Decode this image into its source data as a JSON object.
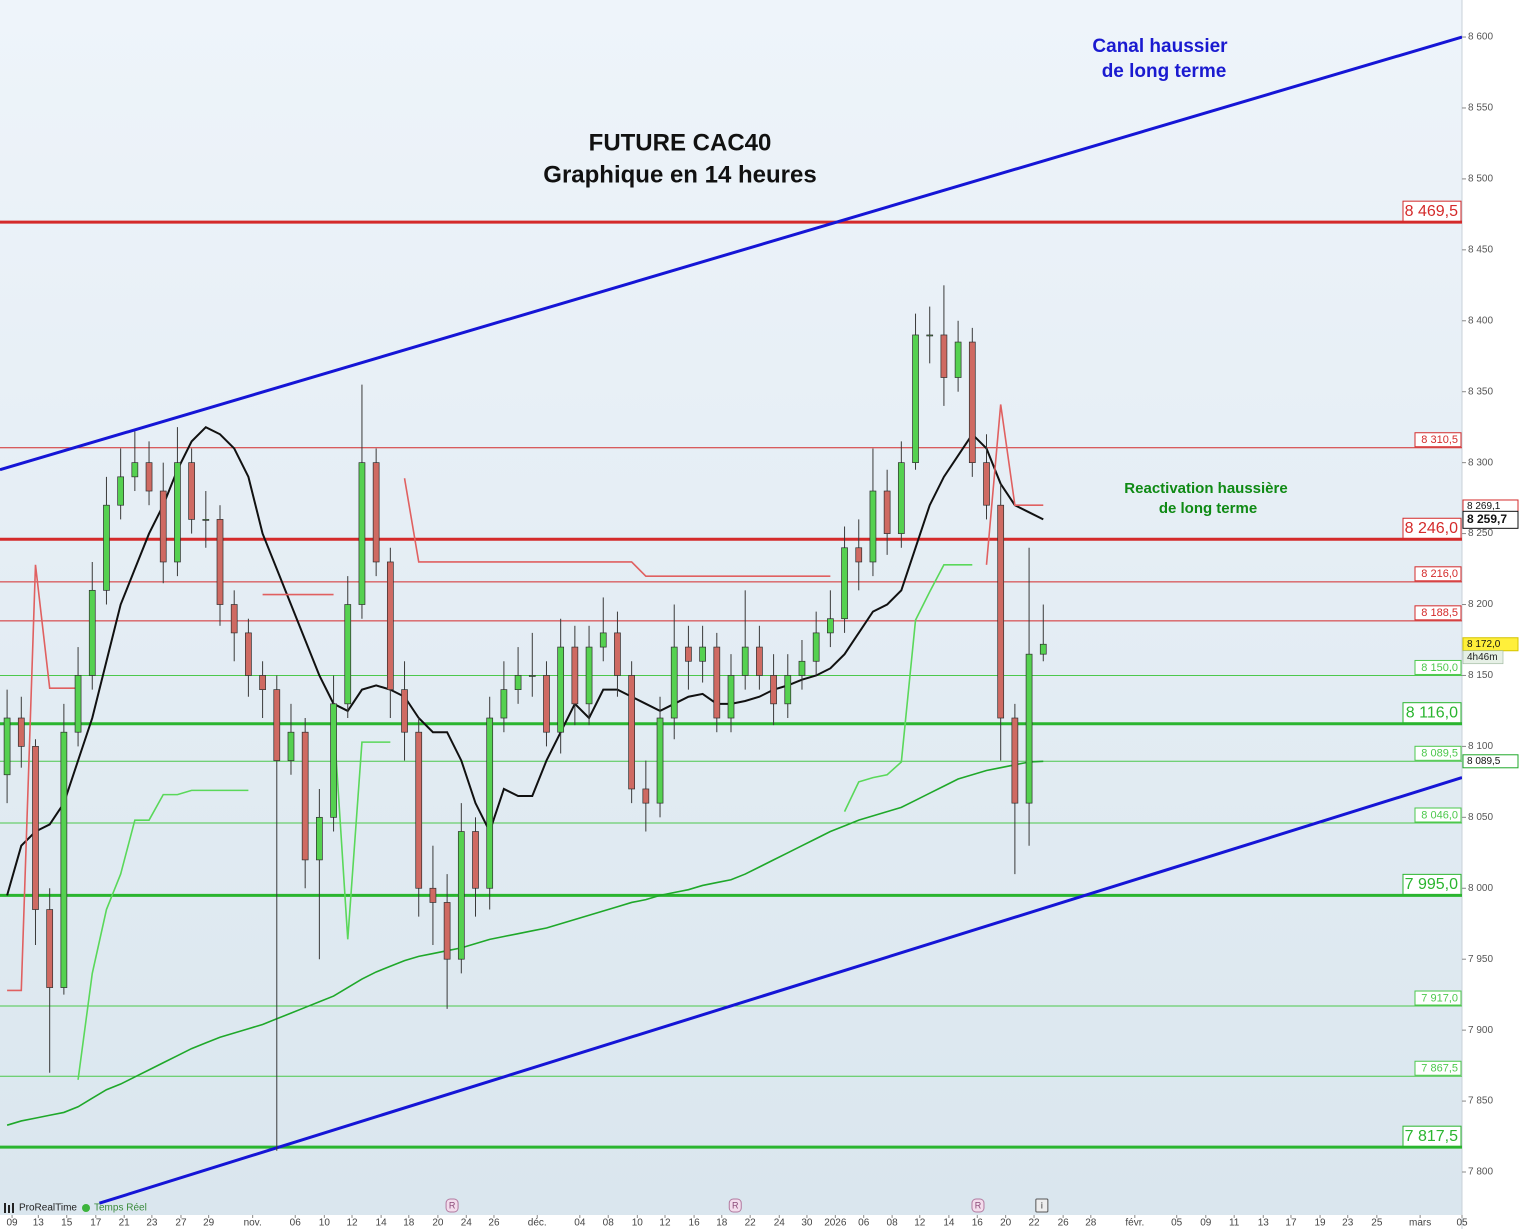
{
  "chart_data": {
    "type": "candlestick",
    "title": [
      "FUTURE CAC40",
      "Graphique en 14 heures"
    ],
    "annotations": [
      {
        "lines": [
          "Canal haussier",
          "de long terme"
        ],
        "color": "#1a1ad0"
      },
      {
        "lines": [
          "Reactivation haussière",
          "de long terme"
        ],
        "color": "#0f8a14"
      }
    ],
    "footer": [
      "ProRealTime",
      "Temps Réel"
    ],
    "xlim": [
      0,
      206
    ],
    "ylim": [
      7769.7,
      8626.1
    ],
    "xticks": [
      {
        "value": 1.7,
        "label": "09"
      },
      {
        "value": 5.4,
        "label": "13"
      },
      {
        "value": 9.4,
        "label": "15"
      },
      {
        "value": 13.5,
        "label": "17"
      },
      {
        "value": 17.5,
        "label": "21"
      },
      {
        "value": 21.4,
        "label": "23"
      },
      {
        "value": 25.5,
        "label": "27"
      },
      {
        "value": 29.4,
        "label": "29"
      },
      {
        "value": 35.6,
        "label": "nov."
      },
      {
        "value": 41.6,
        "label": "06"
      },
      {
        "value": 45.7,
        "label": "10"
      },
      {
        "value": 49.6,
        "label": "12"
      },
      {
        "value": 53.7,
        "label": "14"
      },
      {
        "value": 57.6,
        "label": "18"
      },
      {
        "value": 61.7,
        "label": "20"
      },
      {
        "value": 65.7,
        "label": "24"
      },
      {
        "value": 69.6,
        "label": "26"
      },
      {
        "value": 75.7,
        "label": "déc."
      },
      {
        "value": 81.7,
        "label": "04"
      },
      {
        "value": 85.7,
        "label": "08"
      },
      {
        "value": 89.8,
        "label": "10"
      },
      {
        "value": 93.7,
        "label": "12"
      },
      {
        "value": 97.8,
        "label": "16"
      },
      {
        "value": 101.7,
        "label": "18"
      },
      {
        "value": 105.7,
        "label": "22"
      },
      {
        "value": 109.8,
        "label": "24"
      },
      {
        "value": 113.7,
        "label": "30"
      },
      {
        "value": 117.7,
        "label": "2026"
      },
      {
        "value": 121.7,
        "label": "06"
      },
      {
        "value": 125.7,
        "label": "08"
      },
      {
        "value": 129.6,
        "label": "12"
      },
      {
        "value": 133.7,
        "label": "14"
      },
      {
        "value": 137.7,
        "label": "16"
      },
      {
        "value": 141.7,
        "label": "20"
      },
      {
        "value": 145.7,
        "label": "22"
      },
      {
        "value": 149.8,
        "label": "26"
      },
      {
        "value": 153.7,
        "label": "28"
      },
      {
        "value": 159.9,
        "label": "févr."
      },
      {
        "value": 165.8,
        "label": "05"
      },
      {
        "value": 169.9,
        "label": "09"
      },
      {
        "value": 173.9,
        "label": "11"
      },
      {
        "value": 178.0,
        "label": "13"
      },
      {
        "value": 181.9,
        "label": "17"
      },
      {
        "value": 186.0,
        "label": "19"
      },
      {
        "value": 189.9,
        "label": "23"
      },
      {
        "value": 194.0,
        "label": "25"
      },
      {
        "value": 200.1,
        "label": "mars"
      },
      {
        "value": 206.0,
        "label": "05"
      }
    ],
    "yticks": [
      {
        "value": 7800,
        "label": "7 800"
      },
      {
        "value": 7850,
        "label": "7 850"
      },
      {
        "value": 7900,
        "label": "7 900"
      },
      {
        "value": 7950,
        "label": "7 950"
      },
      {
        "value": 8000,
        "label": "8 000"
      },
      {
        "value": 8050,
        "label": "8 050"
      },
      {
        "value": 8100,
        "label": "8 100"
      },
      {
        "value": 8150,
        "label": "8 150"
      },
      {
        "value": 8200,
        "label": "8 200"
      },
      {
        "value": 8250,
        "label": "8 250"
      },
      {
        "value": 8300,
        "label": "8 300"
      },
      {
        "value": 8350,
        "label": "8 350"
      },
      {
        "value": 8400,
        "label": "8 400"
      },
      {
        "value": 8450,
        "label": "8 450"
      },
      {
        "value": 8500,
        "label": "8 500"
      },
      {
        "value": 8550,
        "label": "8 550"
      },
      {
        "value": 8600,
        "label": "8 600"
      }
    ],
    "up_color": "#55d150",
    "down_color": "#cf6a62",
    "x": [
      1,
      3,
      5,
      7,
      9,
      11,
      13,
      15,
      17,
      19,
      21,
      23,
      25,
      27,
      29,
      31,
      33,
      35,
      37,
      39,
      41,
      43,
      45,
      47,
      49,
      51,
      53,
      55,
      57,
      59,
      61,
      63,
      65,
      67,
      69,
      71,
      73,
      75,
      77,
      79,
      81,
      83,
      85,
      87,
      89,
      91,
      93,
      95,
      97,
      99,
      101,
      103,
      105,
      107,
      109,
      111,
      113,
      115,
      117,
      119,
      121,
      123,
      125,
      127,
      129,
      131,
      133,
      135,
      137,
      139,
      141,
      143,
      145,
      147
    ],
    "open": [
      8080,
      8120,
      8100,
      7985,
      7930,
      8110,
      8150,
      8210,
      8270,
      8290,
      8300,
      8280,
      8230,
      8300,
      8260,
      8260,
      8200,
      8180,
      8150,
      8140,
      8090,
      8110,
      8020,
      8050,
      8130,
      8200,
      8300,
      8230,
      8140,
      8110,
      8000,
      7990,
      7950,
      8040,
      8000,
      8120,
      8140,
      8150,
      8150,
      8110,
      8170,
      8130,
      8170,
      8180,
      8150,
      8070,
      8060,
      8120,
      8170,
      8160,
      8170,
      8120,
      8150,
      8170,
      8150,
      8130,
      8150,
      8160,
      8180,
      8190,
      8240,
      8230,
      8280,
      8250,
      8300,
      8390,
      8390,
      8360,
      8385,
      8300,
      8270,
      8120,
      8060,
      8165
    ],
    "high": [
      8140,
      8135,
      8105,
      8000,
      8130,
      8170,
      8230,
      8290,
      8310,
      8322,
      8315,
      8300,
      8325,
      8310,
      8280,
      8270,
      8210,
      8190,
      8160,
      8150,
      8130,
      8120,
      8070,
      8150,
      8220,
      8355,
      8310,
      8240,
      8160,
      8120,
      8030,
      8010,
      8060,
      8050,
      8135,
      8160,
      8170,
      8180,
      8160,
      8190,
      8185,
      8185,
      8205,
      8195,
      8160,
      8090,
      8135,
      8200,
      8185,
      8185,
      8180,
      8165,
      8210,
      8185,
      8165,
      8165,
      8175,
      8195,
      8210,
      8255,
      8260,
      8310,
      8295,
      8315,
      8405,
      8410,
      8425,
      8400,
      8395,
      8320,
      8285,
      8130,
      8240,
      8200
    ],
    "low": [
      8060,
      8085,
      7960,
      7870,
      7925,
      8100,
      8140,
      8200,
      8260,
      8280,
      8270,
      8215,
      8220,
      8250,
      8240,
      8185,
      8160,
      8135,
      8120,
      7815,
      8080,
      8000,
      7950,
      8040,
      8120,
      8190,
      8220,
      8120,
      8090,
      7980,
      7960,
      7915,
      7940,
      7980,
      7985,
      8110,
      8130,
      8135,
      8100,
      8095,
      8115,
      8115,
      8160,
      8135,
      8060,
      8040,
      8050,
      8105,
      8140,
      8145,
      8110,
      8110,
      8140,
      8140,
      8115,
      8120,
      8140,
      8150,
      8170,
      8180,
      8210,
      8220,
      8235,
      8240,
      8295,
      8370,
      8340,
      8350,
      8290,
      8260,
      8090,
      8010,
      8030,
      8160
    ],
    "close": [
      8120,
      8100,
      7985,
      7930,
      8110,
      8150,
      8210,
      8270,
      8290,
      8300,
      8280,
      8230,
      8300,
      8260,
      8260,
      8200,
      8180,
      8150,
      8140,
      8090,
      8110,
      8020,
      8050,
      8130,
      8200,
      8300,
      8230,
      8140,
      8110,
      8000,
      7990,
      7950,
      8040,
      8000,
      8120,
      8140,
      8150,
      8150,
      8110,
      8170,
      8130,
      8170,
      8180,
      8150,
      8070,
      8060,
      8120,
      8170,
      8160,
      8170,
      8120,
      8150,
      8170,
      8150,
      8130,
      8150,
      8160,
      8180,
      8190,
      8240,
      8230,
      8280,
      8250,
      8300,
      8390,
      8390,
      8360,
      8385,
      8300,
      8270,
      8120,
      8060,
      8165,
      8172
    ],
    "series": [
      {
        "color": "#111111",
        "values": [
          7995,
          8030,
          8040,
          8045,
          8060,
          8090,
          8120,
          8160,
          8200,
          8225,
          8250,
          8270,
          8295,
          8315,
          8325,
          8320,
          8310,
          8290,
          8250,
          8225,
          8200,
          8175,
          8150,
          8130,
          8125,
          8140,
          8143,
          8140,
          8135,
          8120,
          8110,
          8110,
          8090,
          8060,
          8040,
          8070,
          8065,
          8065,
          8090,
          8110,
          8130,
          8120,
          8140,
          8140,
          8135,
          8130,
          8125,
          8130,
          8135,
          8137,
          8130,
          8130,
          8132,
          8135,
          8140,
          8143,
          8147,
          8150,
          8155,
          8165,
          8180,
          8195,
          8200,
          8210,
          8240,
          8270,
          8290,
          8305,
          8320,
          8310,
          8285,
          8270,
          8265,
          8260
        ]
      },
      {
        "color": "#e06060",
        "values": [
          7928,
          7928,
          8228,
          8141,
          8141,
          8141,
          null,
          null,
          null,
          null,
          null,
          null,
          null,
          null,
          null,
          null,
          null,
          null,
          8207,
          8207,
          8207,
          8207,
          8207,
          8207,
          null,
          null,
          null,
          null,
          8289,
          8230,
          8230,
          8230,
          8230,
          8230,
          8230,
          8230,
          8230,
          8230,
          8230,
          8230,
          8230,
          8230,
          8230,
          8230,
          8230,
          8220,
          8220,
          8220,
          8220,
          8220,
          8220,
          8220,
          8220,
          8220,
          8220,
          8220,
          8220,
          8220,
          8220,
          null,
          null,
          null,
          null,
          null,
          null,
          null,
          null,
          null,
          null,
          8228,
          8341,
          8270,
          8270,
          8270
        ]
      },
      {
        "color": "#5ad85a",
        "values": [
          null,
          null,
          null,
          null,
          null,
          7865,
          7940,
          7985,
          8010,
          8048,
          8048,
          8066,
          8066,
          8069,
          8069,
          8069,
          8069,
          8069,
          null,
          null,
          null,
          null,
          null,
          8120,
          7964,
          8103,
          8103,
          8103,
          null,
          null,
          null,
          null,
          null,
          null,
          null,
          null,
          null,
          null,
          null,
          null,
          null,
          null,
          null,
          null,
          null,
          null,
          null,
          null,
          null,
          null,
          null,
          null,
          null,
          null,
          null,
          null,
          null,
          null,
          null,
          8054,
          8075,
          8078,
          8080,
          8089,
          8189,
          8209,
          8228,
          8228,
          8228,
          null,
          null,
          null,
          null,
          null
        ]
      },
      {
        "color": "#1fa82a",
        "values": [
          7833,
          7836,
          7838,
          7840,
          7842,
          7846,
          7852,
          7858,
          7862,
          7867,
          7872,
          7877,
          7882,
          7887,
          7891,
          7895,
          7898,
          7901,
          7904,
          7908,
          7912,
          7916,
          7920,
          7924,
          7930,
          7936,
          7941,
          7945,
          7949,
          7952,
          7954,
          7956,
          7958,
          7961,
          7964,
          7966,
          7968,
          7970,
          7972,
          7975,
          7978,
          7981,
          7984,
          7987,
          7990,
          7992,
          7995,
          7997,
          7999,
          8002,
          8004,
          8006,
          8010,
          8015,
          8020,
          8025,
          8030,
          8035,
          8040,
          8044,
          8048,
          8051,
          8054,
          8057,
          8062,
          8067,
          8072,
          8077,
          8080,
          8083,
          8085,
          8087,
          8089,
          8089.5
        ]
      }
    ],
    "channels": [
      {
        "color": "#1515d6",
        "x": [
          0,
          206
        ],
        "values": [
          8295,
          8600
        ]
      },
      {
        "color": "#1515d6",
        "x": [
          14,
          206
        ],
        "values": [
          7778,
          8078
        ]
      }
    ],
    "levels": {
      "values": [
        8469.5,
        8310.5,
        8246.0,
        8216.0,
        8188.5,
        8150.0,
        8116.0,
        8089.5,
        8046.0,
        7995.0,
        7917.0,
        7867.5,
        7817.5
      ],
      "value_labels": [
        "8 469,5",
        "8 310,5",
        "8 246,0",
        "8 216,0",
        "8 188,5",
        "8 150,0",
        "8 116,0",
        "8 089,5",
        "8 046,0",
        "7 995,0",
        "7 917,0",
        "7 867,5",
        "7 817,5"
      ],
      "colors": [
        "#d42a2a",
        "#d42a2a",
        "#d42a2a",
        "#d42a2a",
        "#d42a2a",
        "#4cc84c",
        "#2ab52f",
        "#4cc84c",
        "#4cc84c",
        "#2ab52f",
        "#4cc84c",
        "#4cc84c",
        "#2ab52f"
      ],
      "thick": [
        true,
        false,
        true,
        false,
        false,
        false,
        true,
        false,
        false,
        true,
        false,
        false,
        true
      ]
    },
    "tags": {
      "values": [
        8269.1,
        8259.7,
        8172.0,
        8089.5
      ],
      "value_labels": [
        "8 269,1",
        "8 259,7",
        "8 172,0",
        "8 089,5"
      ],
      "colors": [
        "#d42a2a",
        "#111111",
        "#d4c400",
        "#1fa82a"
      ],
      "fills": [
        "#ffffff",
        "#ffffff",
        "#ffef3a",
        "#ffffff"
      ]
    },
    "countdown": "4h46m",
    "events": {
      "x": [
        63.7,
        103.6,
        137.8,
        146.8
      ],
      "labels": [
        "R",
        "R",
        "R",
        "i"
      ]
    }
  }
}
